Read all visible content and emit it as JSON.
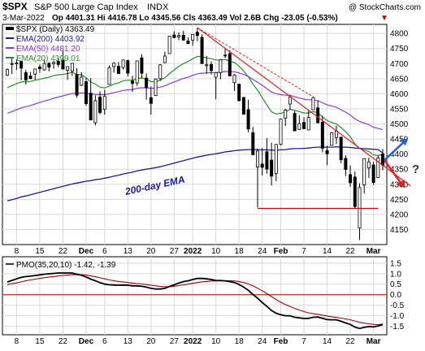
{
  "header": {
    "symbol": "$SPX",
    "name": "S&P 500 Large Cap Index",
    "exchange": "INDX",
    "watermark": "@ StockCharts.com",
    "date": "3-Mar-2022",
    "ohlc_line": "Op 4401.31  Hi 4416.78  Lo 4345.56  Cls 4363.49  Vol 2.6B  Chg -23.05 (-0.53%)",
    "down_marker": "▼"
  },
  "legend": {
    "price": "$SPX (Daily) 4363.49",
    "ema200": "EMA(200) 4403.92",
    "ema50": "EMA(50) 4481.20",
    "ema20": "EMA(20) 4399.01"
  },
  "annotations": {
    "ema_label": "200-day EMA",
    "question": "?"
  },
  "colors": {
    "price": "#000000",
    "ema200": "#1a1aa0",
    "ema50": "#8a3ad6",
    "ema20": "#2e8a2e",
    "trendline": "#e02020",
    "support": "#cc0000",
    "pmo": "#000000",
    "pmo_signal": "#a00000",
    "zero_line": "#cc0000",
    "arrow_up": "#1f5fe0",
    "arrow_down": "#e02020",
    "grid": "#d8d8d8"
  },
  "lower_panel": {
    "label": "PMO(35,20,10) -1.42, -1.39"
  },
  "x_ticks": [
    "8",
    "15",
    "22",
    "Dec",
    "6",
    "13",
    "20",
    "27",
    "2022",
    "10",
    "18",
    "24",
    "Feb",
    "7",
    "14",
    "22",
    "Mar"
  ],
  "chart_data": [
    {
      "type": "candlestick",
      "title": "$SPX S&P 500 Large Cap Index INDX",
      "ylim": [
        4100,
        4830
      ],
      "y_ticks": [
        4150,
        4200,
        4250,
        4300,
        4350,
        4400,
        4450,
        4500,
        4550,
        4600,
        4650,
        4700,
        4750,
        4800
      ],
      "support_level": 4220,
      "dates": [
        "2021-11-04",
        "2021-11-05",
        "2021-11-08",
        "2021-11-09",
        "2021-11-10",
        "2021-11-11",
        "2021-11-12",
        "2021-11-15",
        "2021-11-16",
        "2021-11-17",
        "2021-11-18",
        "2021-11-19",
        "2021-11-22",
        "2021-11-23",
        "2021-11-24",
        "2021-11-26",
        "2021-11-29",
        "2021-11-30",
        "2021-12-01",
        "2021-12-02",
        "2021-12-03",
        "2021-12-06",
        "2021-12-07",
        "2021-12-08",
        "2021-12-09",
        "2021-12-10",
        "2021-12-13",
        "2021-12-14",
        "2021-12-15",
        "2021-12-16",
        "2021-12-17",
        "2021-12-20",
        "2021-12-21",
        "2021-12-22",
        "2021-12-23",
        "2021-12-27",
        "2021-12-28",
        "2021-12-29",
        "2021-12-30",
        "2021-12-31",
        "2022-01-03",
        "2022-01-04",
        "2022-01-05",
        "2022-01-06",
        "2022-01-07",
        "2022-01-10",
        "2022-01-11",
        "2022-01-12",
        "2022-01-13",
        "2022-01-14",
        "2022-01-18",
        "2022-01-19",
        "2022-01-20",
        "2022-01-21",
        "2022-01-24",
        "2022-01-25",
        "2022-01-26",
        "2022-01-27",
        "2022-01-28",
        "2022-01-31",
        "2022-02-01",
        "2022-02-02",
        "2022-02-03",
        "2022-02-04",
        "2022-02-07",
        "2022-02-08",
        "2022-02-09",
        "2022-02-10",
        "2022-02-11",
        "2022-02-14",
        "2022-02-15",
        "2022-02-16",
        "2022-02-17",
        "2022-02-18",
        "2022-02-22",
        "2022-02-23",
        "2022-02-24",
        "2022-02-25",
        "2022-02-28",
        "2022-03-01",
        "2022-03-02",
        "2022-03-03"
      ],
      "open": [
        4662,
        4700,
        4701,
        4707,
        4670,
        4659,
        4665,
        4689,
        4679,
        4701,
        4700,
        4708,
        4712,
        4678,
        4675,
        4664,
        4628,
        4640,
        4602,
        4504,
        4589,
        4548,
        4631,
        4690,
        4691,
        4687,
        4710,
        4642,
        4636,
        4719,
        4652,
        4587,
        4594,
        4650,
        4703,
        4733,
        4795,
        4788,
        4794,
        4775,
        4778,
        4804,
        4787,
        4693,
        4697,
        4655,
        4670,
        4728,
        4733,
        4637,
        4632,
        4588,
        4547,
        4471,
        4357,
        4367,
        4408,
        4380,
        4336,
        4432,
        4519,
        4566,
        4535,
        4482,
        4505,
        4480,
        4547,
        4553,
        4506,
        4412,
        4429,
        4455,
        4456,
        4386,
        4332,
        4324,
        4155,
        4298,
        4354,
        4364,
        4322,
        4401
      ],
      "high": [
        4684,
        4718,
        4714,
        4708,
        4680,
        4672,
        4683,
        4697,
        4714,
        4705,
        4708,
        4718,
        4744,
        4690,
        4702,
        4685,
        4672,
        4652,
        4652,
        4595,
        4608,
        4613,
        4694,
        4705,
        4705,
        4713,
        4713,
        4660,
        4710,
        4731,
        4667,
        4624,
        4651,
        4698,
        4740,
        4791,
        4807,
        4804,
        4809,
        4787,
        4796,
        4819,
        4797,
        4725,
        4707,
        4671,
        4715,
        4749,
        4744,
        4665,
        4632,
        4588,
        4580,
        4490,
        4418,
        4420,
        4453,
        4438,
        4433,
        4516,
        4550,
        4596,
        4543,
        4529,
        4522,
        4545,
        4590,
        4577,
        4527,
        4428,
        4473,
        4494,
        4456,
        4396,
        4362,
        4342,
        4303,
        4385,
        4388,
        4374,
        4395,
        4417
      ],
      "low": [
        4659,
        4665,
        4679,
        4645,
        4630,
        4652,
        4646,
        4669,
        4677,
        4674,
        4683,
        4688,
        4681,
        4646,
        4659,
        4587,
        4625,
        4560,
        4512,
        4495,
        4532,
        4531,
        4631,
        4670,
        4665,
        4680,
        4657,
        4606,
        4626,
        4652,
        4580,
        4531,
        4594,
        4643,
        4703,
        4733,
        4788,
        4778,
        4776,
        4765,
        4759,
        4774,
        4698,
        4666,
        4664,
        4582,
        4648,
        4718,
        4658,
        4609,
        4575,
        4532,
        4472,
        4396,
        4223,
        4329,
        4335,
        4296,
        4310,
        4429,
        4493,
        4547,
        4476,
        4480,
        4491,
        4480,
        4547,
        4502,
        4406,
        4363,
        4429,
        4434,
        4370,
        4327,
        4291,
        4221,
        4115,
        4269,
        4321,
        4298,
        4322,
        4346
      ],
      "close": [
        4680,
        4698,
        4702,
        4685,
        4646,
        4650,
        4682,
        4683,
        4700,
        4688,
        4704,
        4697,
        4682,
        4690,
        4701,
        4595,
        4655,
        4567,
        4513,
        4577,
        4538,
        4591,
        4686,
        4701,
        4667,
        4712,
        4668,
        4634,
        4709,
        4668,
        4620,
        4568,
        4649,
        4696,
        4725,
        4791,
        4786,
        4793,
        4778,
        4766,
        4797,
        4793,
        4700,
        4696,
        4677,
        4670,
        4713,
        4726,
        4659,
        4662,
        4577,
        4532,
        4483,
        4398,
        4410,
        4356,
        4350,
        4327,
        4432,
        4516,
        4546,
        4589,
        4477,
        4501,
        4484,
        4521,
        4587,
        4504,
        4419,
        4401,
        4471,
        4476,
        4381,
        4349,
        4305,
        4226,
        4289,
        4385,
        4374,
        4306,
        4387,
        4363
      ],
      "ema200": [
        4245,
        4249,
        4253,
        4258,
        4261,
        4265,
        4269,
        4273,
        4277,
        4281,
        4285,
        4289,
        4293,
        4297,
        4301,
        4304,
        4307,
        4310,
        4312,
        4315,
        4317,
        4320,
        4323,
        4327,
        4330,
        4334,
        4337,
        4340,
        4344,
        4347,
        4350,
        4352,
        4355,
        4358,
        4362,
        4366,
        4370,
        4374,
        4378,
        4382,
        4386,
        4390,
        4393,
        4396,
        4399,
        4401,
        4404,
        4407,
        4409,
        4411,
        4413,
        4414,
        4415,
        4415,
        4415,
        4414,
        4414,
        4413,
        4413,
        4414,
        4415,
        4417,
        4418,
        4418,
        4419,
        4420,
        4422,
        4423,
        4423,
        4423,
        4423,
        4424,
        4423,
        4423,
        4422,
        4420,
        4419,
        4418,
        4417,
        4416,
        4415,
        4404
      ],
      "ema50": [
        4535,
        4541,
        4547,
        4553,
        4557,
        4561,
        4566,
        4571,
        4576,
        4580,
        4585,
        4589,
        4593,
        4597,
        4601,
        4601,
        4603,
        4602,
        4599,
        4598,
        4597,
        4597,
        4600,
        4604,
        4607,
        4611,
        4613,
        4614,
        4618,
        4620,
        4620,
        4618,
        4619,
        4622,
        4626,
        4633,
        4639,
        4645,
        4651,
        4655,
        4661,
        4666,
        4668,
        4669,
        4670,
        4670,
        4672,
        4674,
        4673,
        4673,
        4669,
        4664,
        4657,
        4647,
        4638,
        4628,
        4617,
        4606,
        4600,
        4597,
        4595,
        4595,
        4590,
        4586,
        4582,
        4580,
        4580,
        4577,
        4570,
        4563,
        4559,
        4555,
        4547,
        4539,
        4529,
        4517,
        4508,
        4503,
        4497,
        4489,
        4485,
        4481
      ],
      "ema20": [
        4620,
        4627,
        4634,
        4639,
        4640,
        4641,
        4645,
        4648,
        4652,
        4655,
        4660,
        4663,
        4664,
        4667,
        4671,
        4664,
        4663,
        4653,
        4639,
        4632,
        4622,
        4619,
        4625,
        4632,
        4636,
        4643,
        4645,
        4644,
        4651,
        4652,
        4649,
        4640,
        4640,
        4645,
        4653,
        4667,
        4679,
        4691,
        4700,
        4707,
        4716,
        4724,
        4722,
        4719,
        4716,
        4712,
        4712,
        4713,
        4708,
        4704,
        4691,
        4675,
        4656,
        4632,
        4612,
        4587,
        4563,
        4540,
        4533,
        4535,
        4540,
        4548,
        4545,
        4541,
        4536,
        4536,
        4541,
        4537,
        4523,
        4511,
        4505,
        4500,
        4488,
        4474,
        4457,
        4434,
        4418,
        4413,
        4409,
        4397,
        4395,
        4399
      ]
    },
    {
      "type": "line",
      "title": "PMO(35,20,10) -1.42, -1.39",
      "ylim": [
        -1.9,
        1.8
      ],
      "y_ticks": [
        -1.5,
        -1.0,
        -0.5,
        0.0,
        0.5,
        1.0,
        1.5
      ],
      "series": [
        {
          "name": "PMO(35,20,10)",
          "values": [
            0.6,
            0.68,
            0.75,
            0.82,
            0.86,
            0.88,
            0.91,
            0.94,
            0.97,
            0.99,
            1.01,
            1.03,
            1.03,
            1.03,
            1.03,
            0.97,
            0.92,
            0.84,
            0.74,
            0.66,
            0.57,
            0.5,
            0.47,
            0.46,
            0.45,
            0.46,
            0.45,
            0.42,
            0.42,
            0.4,
            0.36,
            0.3,
            0.27,
            0.27,
            0.3,
            0.39,
            0.47,
            0.55,
            0.62,
            0.66,
            0.72,
            0.77,
            0.77,
            0.75,
            0.72,
            0.68,
            0.67,
            0.66,
            0.62,
            0.58,
            0.48,
            0.36,
            0.21,
            0.01,
            -0.17,
            -0.37,
            -0.55,
            -0.75,
            -0.88,
            -0.95,
            -1.0,
            -1.0,
            -1.07,
            -1.1,
            -1.13,
            -1.12,
            -1.07,
            -1.06,
            -1.12,
            -1.18,
            -1.19,
            -1.19,
            -1.26,
            -1.34,
            -1.41,
            -1.54,
            -1.6,
            -1.55,
            -1.51,
            -1.53,
            -1.48,
            -1.42
          ]
        },
        {
          "name": "Signal",
          "values": [
            0.48,
            0.52,
            0.56,
            0.61,
            0.66,
            0.7,
            0.74,
            0.77,
            0.81,
            0.84,
            0.86,
            0.89,
            0.91,
            0.93,
            0.95,
            0.95,
            0.95,
            0.93,
            0.89,
            0.85,
            0.8,
            0.75,
            0.7,
            0.66,
            0.63,
            0.6,
            0.58,
            0.55,
            0.53,
            0.51,
            0.48,
            0.45,
            0.42,
            0.39,
            0.38,
            0.38,
            0.4,
            0.43,
            0.47,
            0.5,
            0.54,
            0.58,
            0.61,
            0.63,
            0.65,
            0.65,
            0.66,
            0.66,
            0.66,
            0.65,
            0.62,
            0.58,
            0.51,
            0.42,
            0.31,
            0.19,
            0.05,
            -0.09,
            -0.23,
            -0.36,
            -0.47,
            -0.56,
            -0.65,
            -0.73,
            -0.8,
            -0.86,
            -0.9,
            -0.93,
            -0.97,
            -1.01,
            -1.05,
            -1.08,
            -1.11,
            -1.15,
            -1.19,
            -1.25,
            -1.31,
            -1.35,
            -1.38,
            -1.41,
            -1.42,
            -1.39
          ]
        }
      ]
    }
  ]
}
